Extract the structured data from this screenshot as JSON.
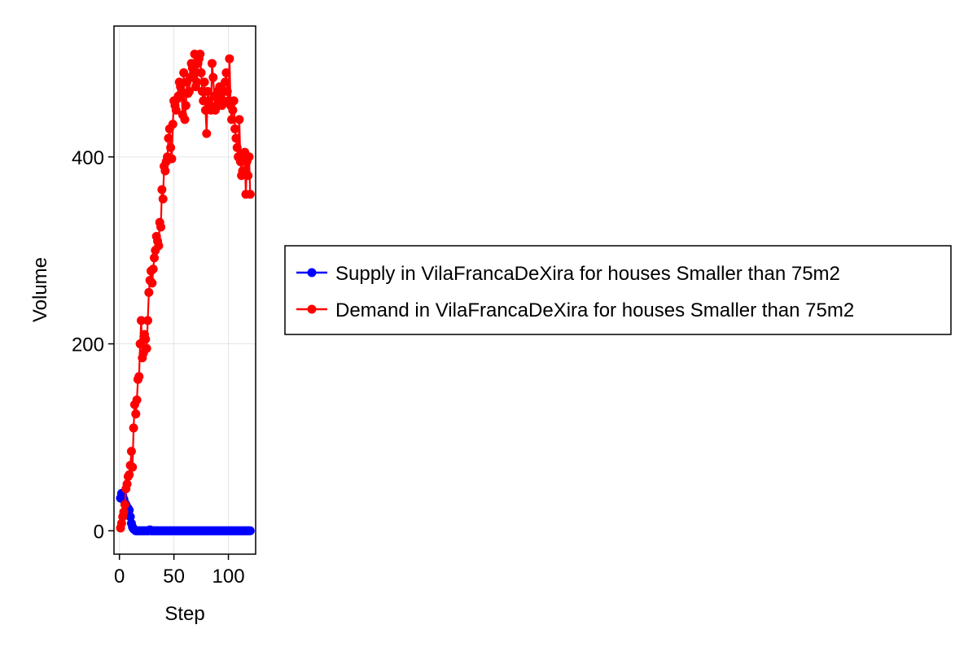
{
  "chart_data": {
    "type": "line",
    "xlabel": "Step",
    "ylabel": "Volume",
    "xlim": [
      -5,
      125
    ],
    "ylim": [
      -25,
      540
    ],
    "xticks": [
      0,
      50,
      100
    ],
    "yticks": [
      0,
      200,
      400
    ],
    "grid": true,
    "legend_position": "right",
    "series": [
      {
        "name": "Supply in VilaFrancaDeXira for houses Smaller than 75m2",
        "color": "#0000ff",
        "x": [
          1,
          2,
          3,
          4,
          5,
          6,
          7,
          8,
          9,
          10,
          11,
          12,
          13,
          14,
          15,
          16,
          17,
          18,
          19,
          20,
          21,
          22,
          23,
          24,
          25,
          26,
          27,
          28,
          29,
          30,
          31,
          32,
          33,
          34,
          35,
          36,
          37,
          38,
          39,
          40,
          41,
          42,
          43,
          44,
          45,
          46,
          47,
          48,
          49,
          50,
          51,
          52,
          53,
          54,
          55,
          56,
          57,
          58,
          59,
          60,
          61,
          62,
          63,
          64,
          65,
          66,
          67,
          68,
          69,
          70,
          71,
          72,
          73,
          74,
          75,
          76,
          77,
          78,
          79,
          80,
          81,
          82,
          83,
          84,
          85,
          86,
          87,
          88,
          89,
          90,
          91,
          92,
          93,
          94,
          95,
          96,
          97,
          98,
          99,
          100,
          101,
          102,
          103,
          104,
          105,
          106,
          107,
          108,
          109,
          110,
          111,
          112,
          113,
          114,
          115,
          116,
          117,
          118,
          119,
          120
        ],
        "y": [
          35,
          40,
          38,
          34,
          30,
          28,
          25,
          24,
          22,
          15,
          8,
          4,
          2,
          1,
          0,
          0,
          0,
          0,
          0,
          0,
          0,
          0,
          0,
          0,
          0,
          0,
          0,
          1,
          0,
          0,
          0,
          0,
          0,
          0,
          0,
          0,
          0,
          0,
          0,
          0,
          0,
          0,
          0,
          0,
          0,
          0,
          0,
          0,
          0,
          0,
          0,
          0,
          0,
          0,
          0,
          0,
          0,
          0,
          0,
          0,
          0,
          0,
          0,
          0,
          0,
          0,
          0,
          0,
          0,
          0,
          0,
          0,
          0,
          0,
          0,
          0,
          0,
          0,
          0,
          0,
          0,
          0,
          0,
          0,
          0,
          0,
          0,
          0,
          0,
          0,
          0,
          0,
          0,
          0,
          0,
          0,
          0,
          0,
          0,
          0,
          0,
          0,
          0,
          0,
          0,
          0,
          0,
          0,
          0,
          0,
          0,
          0,
          0,
          0,
          0,
          0,
          0,
          0,
          0,
          0
        ]
      },
      {
        "name": "Demand in VilaFrancaDeXira for houses Smaller than 75m2",
        "color": "#ff0000",
        "x": [
          1,
          2,
          3,
          4,
          5,
          6,
          7,
          8,
          9,
          10,
          11,
          12,
          13,
          14,
          15,
          16,
          17,
          18,
          19,
          20,
          21,
          22,
          23,
          24,
          25,
          26,
          27,
          28,
          29,
          30,
          31,
          32,
          33,
          34,
          35,
          36,
          37,
          38,
          39,
          40,
          41,
          42,
          43,
          44,
          45,
          46,
          47,
          48,
          49,
          50,
          51,
          52,
          53,
          54,
          55,
          56,
          57,
          58,
          59,
          60,
          61,
          62,
          63,
          64,
          65,
          66,
          67,
          68,
          69,
          70,
          71,
          72,
          73,
          74,
          75,
          76,
          77,
          78,
          79,
          80,
          81,
          82,
          83,
          84,
          85,
          86,
          87,
          88,
          89,
          90,
          91,
          92,
          93,
          94,
          95,
          96,
          97,
          98,
          99,
          100,
          101,
          102,
          103,
          104,
          105,
          106,
          107,
          108,
          109,
          110,
          111,
          112,
          113,
          114,
          115,
          116,
          117,
          118,
          119,
          120
        ],
        "y": [
          3,
          8,
          15,
          20,
          28,
          45,
          50,
          58,
          60,
          70,
          85,
          68,
          110,
          135,
          125,
          140,
          162,
          165,
          200,
          225,
          185,
          190,
          210,
          205,
          195,
          225,
          255,
          268,
          278,
          265,
          280,
          292,
          300,
          315,
          310,
          305,
          330,
          325,
          365,
          355,
          390,
          385,
          395,
          400,
          420,
          430,
          410,
          398,
          435,
          460,
          455,
          450,
          462,
          465,
          480,
          475,
          470,
          445,
          490,
          440,
          455,
          480,
          468,
          470,
          485,
          500,
          495,
          490,
          510,
          475,
          480,
          500,
          505,
          510,
          490,
          470,
          460,
          480,
          450,
          425,
          470,
          460,
          455,
          450,
          500,
          485,
          465,
          450,
          455,
          470,
          460,
          475,
          465,
          455,
          460,
          470,
          480,
          490,
          470,
          460,
          505,
          455,
          440,
          450,
          460,
          430,
          420,
          410,
          400,
          440,
          395,
          380,
          385,
          400,
          405,
          360,
          395,
          380,
          400,
          360
        ]
      }
    ]
  }
}
